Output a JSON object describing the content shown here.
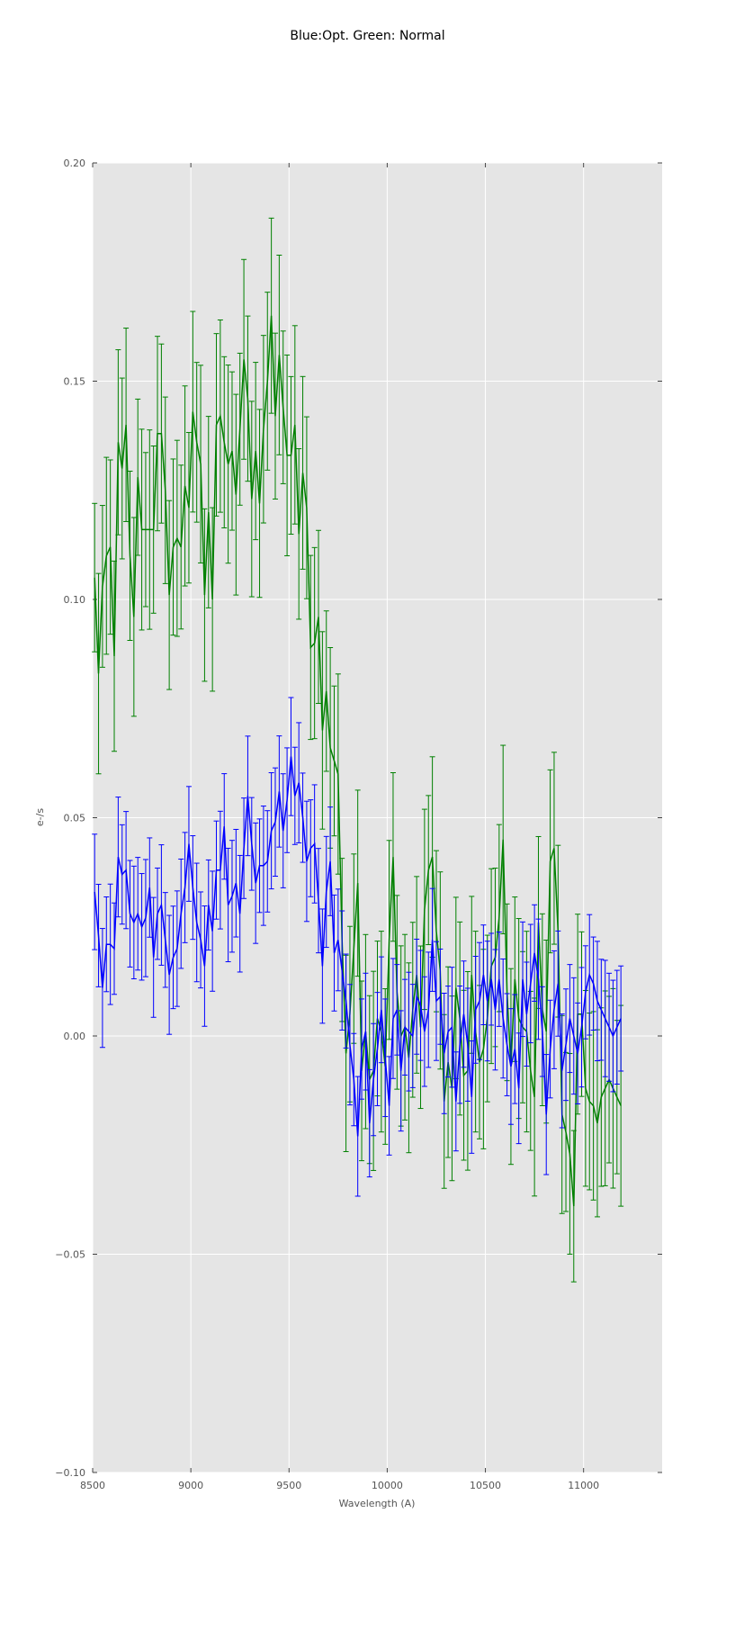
{
  "figure": {
    "title": "Blue:Opt. Green: Normal"
  },
  "chart_data": {
    "type": "line",
    "title": "Blue:Opt. Green: Normal",
    "xlabel": "Wavelength (A)",
    "ylabel": "e-/s",
    "xlim": [
      8500,
      11400
    ],
    "ylim": [
      -0.1,
      0.2
    ],
    "xticks": [
      8500,
      9000,
      9500,
      10000,
      10500,
      11000
    ],
    "yticks": [
      -0.1,
      -0.05,
      0.0,
      0.05,
      0.1,
      0.15,
      0.2
    ],
    "xtick_labels": [
      "8500",
      "9000",
      "9500",
      "10000",
      "10500",
      "11000"
    ],
    "ytick_labels": [
      "−0.10",
      "−0.05",
      "0.00",
      "0.05",
      "0.10",
      "0.15",
      "0.20"
    ],
    "grid": true,
    "background": "#e5e5e5",
    "error_bars": true,
    "x_step": 20,
    "x_start": 8510,
    "series": [
      {
        "color": "#008000",
        "values": [
          0.105,
          0.083,
          0.103,
          0.11,
          0.112,
          0.087,
          0.136,
          0.13,
          0.14,
          0.11,
          0.096,
          0.128,
          0.116,
          0.116,
          0.116,
          0.116,
          0.138,
          0.138,
          0.125,
          0.101,
          0.112,
          0.114,
          0.112,
          0.126,
          0.121,
          0.143,
          0.136,
          0.131,
          0.101,
          0.12,
          0.1,
          0.14,
          0.142,
          0.136,
          0.131,
          0.134,
          0.124,
          0.139,
          0.155,
          0.146,
          0.123,
          0.134,
          0.122,
          0.139,
          0.15,
          0.165,
          0.142,
          0.156,
          0.144,
          0.133,
          0.133,
          0.14,
          0.115,
          0.129,
          0.121,
          0.089,
          0.09,
          0.096,
          0.07,
          0.079,
          0.066,
          0.063,
          0.06,
          0.022,
          -0.004,
          0.005,
          0.02,
          0.035,
          -0.008,
          0.001,
          -0.01,
          -0.008,
          0.004,
          0.001,
          -0.007,
          0.022,
          0.041,
          0.01,
          0.0,
          0.002,
          -0.005,
          0.006,
          0.014,
          0.002,
          0.029,
          0.038,
          0.041,
          0.024,
          0.015,
          -0.015,
          -0.006,
          -0.012,
          0.011,
          0.004,
          -0.009,
          -0.008,
          0.014,
          0.001,
          -0.006,
          -0.003,
          0.004,
          0.016,
          0.018,
          0.027,
          0.045,
          0.01,
          -0.007,
          0.013,
          0.004,
          0.002,
          0.001,
          -0.008,
          -0.014,
          0.026,
          0.006,
          0.001,
          0.04,
          0.043,
          0.024,
          -0.018,
          -0.022,
          -0.027,
          -0.039,
          0.005,
          0.005,
          -0.012,
          -0.015,
          -0.016,
          -0.02,
          -0.014,
          -0.012,
          -0.01,
          -0.012,
          -0.014,
          -0.016
        ]
      },
      {
        "color": "#0000ff",
        "values": [
          0.033,
          0.023,
          0.011,
          0.021,
          0.021,
          0.02,
          0.041,
          0.037,
          0.038,
          0.028,
          0.026,
          0.028,
          0.025,
          0.027,
          0.034,
          0.018,
          0.028,
          0.03,
          0.022,
          0.014,
          0.018,
          0.02,
          0.028,
          0.034,
          0.044,
          0.034,
          0.026,
          0.022,
          0.016,
          0.03,
          0.024,
          0.038,
          0.038,
          0.048,
          0.03,
          0.032,
          0.035,
          0.028,
          0.043,
          0.055,
          0.044,
          0.035,
          0.039,
          0.039,
          0.04,
          0.047,
          0.049,
          0.056,
          0.047,
          0.054,
          0.064,
          0.055,
          0.058,
          0.05,
          0.04,
          0.043,
          0.044,
          0.031,
          0.016,
          0.033,
          0.04,
          0.019,
          0.022,
          0.015,
          0.008,
          -0.002,
          -0.01,
          -0.023,
          -0.003,
          0.001,
          -0.02,
          -0.01,
          -0.003,
          0.006,
          -0.005,
          -0.016,
          0.004,
          0.006,
          -0.008,
          0.002,
          0.001,
          0.0,
          0.009,
          0.007,
          0.001,
          0.006,
          0.022,
          0.008,
          0.009,
          -0.004,
          0.001,
          0.002,
          -0.015,
          -0.002,
          0.005,
          -0.002,
          -0.014,
          0.006,
          0.008,
          0.014,
          0.008,
          0.013,
          0.006,
          0.013,
          0.004,
          -0.002,
          -0.007,
          -0.003,
          -0.012,
          0.013,
          0.005,
          0.012,
          0.019,
          0.013,
          0.001,
          -0.018,
          -0.003,
          0.006,
          0.012,
          -0.008,
          -0.002,
          0.004,
          0.0,
          -0.004,
          0.002,
          0.01,
          0.014,
          0.012,
          0.008,
          0.006,
          0.004,
          0.002,
          0.0,
          0.002,
          0.004
        ]
      }
    ],
    "error": {
      "green": 0.02,
      "blue": 0.012
    }
  }
}
